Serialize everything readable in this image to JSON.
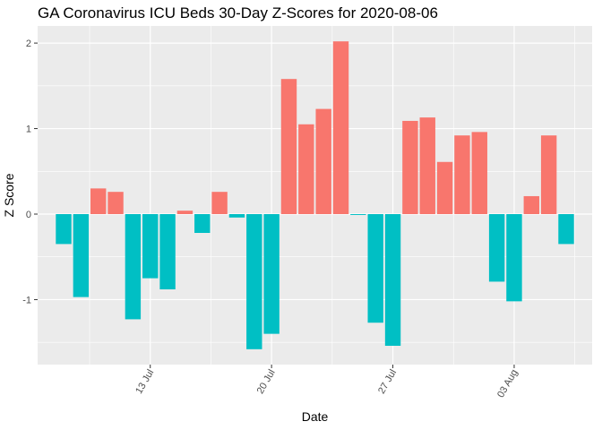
{
  "chart_data": {
    "type": "bar",
    "title": "GA Coronavirus ICU Beds 30-Day Z-Scores for 2020-08-06",
    "xlabel": "Date",
    "ylabel": "Z Score",
    "dates": [
      "2020-07-08",
      "2020-07-09",
      "2020-07-10",
      "2020-07-11",
      "2020-07-12",
      "2020-07-13",
      "2020-07-14",
      "2020-07-15",
      "2020-07-16",
      "2020-07-17",
      "2020-07-18",
      "2020-07-19",
      "2020-07-20",
      "2020-07-21",
      "2020-07-22",
      "2020-07-23",
      "2020-07-24",
      "2020-07-25",
      "2020-07-26",
      "2020-07-27",
      "2020-07-28",
      "2020-07-29",
      "2020-07-30",
      "2020-07-31",
      "2020-08-01",
      "2020-08-02",
      "2020-08-03",
      "2020-08-04",
      "2020-08-05",
      "2020-08-06"
    ],
    "values": [
      -0.35,
      -0.97,
      0.3,
      0.26,
      -1.23,
      -0.75,
      -0.88,
      0.04,
      -0.22,
      0.26,
      -0.04,
      -1.58,
      -1.4,
      1.58,
      1.05,
      1.23,
      2.02,
      -0.01,
      -1.27,
      -1.54,
      1.09,
      1.13,
      0.61,
      0.92,
      0.96,
      -0.79,
      -1.02,
      0.21,
      0.92,
      -0.35
    ],
    "x_ticks": [
      {
        "date": "2020-07-13",
        "label": "13 Jul"
      },
      {
        "date": "2020-07-20",
        "label": "20 Jul"
      },
      {
        "date": "2020-07-27",
        "label": "27 Jul"
      },
      {
        "date": "2020-08-03",
        "label": "03 Aug"
      }
    ],
    "y_ticks": [
      -1,
      0,
      1,
      2
    ],
    "ylim": [
      -1.76,
      2.2
    ],
    "xlim": [
      "2020-07-06T12:00",
      "2020-08-07T12:00"
    ],
    "grid": true,
    "legend": "none",
    "colors": {
      "positive": "#f8766d",
      "negative": "#00bfc4",
      "panel": "#ebebeb",
      "grid": "#ffffff"
    }
  }
}
